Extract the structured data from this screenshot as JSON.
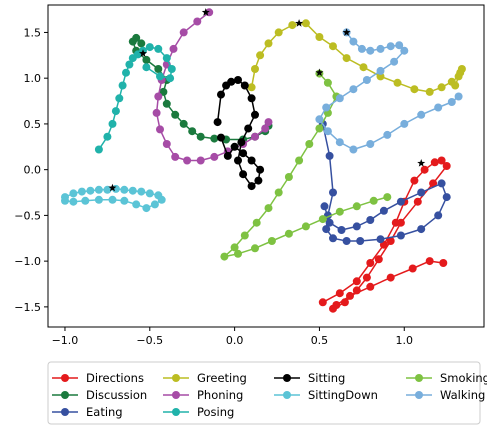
{
  "chart_data": {
    "type": "line",
    "marker": "circle",
    "grid": false,
    "xlim": [
      -1.1,
      1.47
    ],
    "ylim": [
      -1.72,
      1.8
    ],
    "xticks": [
      -1.0,
      -0.5,
      0.0,
      0.5,
      1.0
    ],
    "yticks": [
      -1.5,
      -1.0,
      -0.5,
      0.0,
      0.5,
      1.0,
      1.5
    ],
    "xtick_labels": [
      "−1.0",
      "−0.5",
      "0.0",
      "0.5",
      "1.0"
    ],
    "ytick_labels": [
      "−1.5",
      "−1.0",
      "−0.5",
      "0.0",
      "0.5",
      "1.0",
      "1.5"
    ],
    "legend_placement": "lower-center-below-axes",
    "legend_columns": 4,
    "series": [
      {
        "name": "Directions",
        "color": "#e41a1c",
        "x": [
          0.52,
          0.62,
          0.72,
          0.8,
          0.88,
          0.95,
          1.0,
          1.06,
          1.12,
          1.18,
          1.22,
          1.25,
          1.17,
          1.08,
          0.98,
          0.92,
          0.85,
          0.78,
          0.72,
          0.65,
          0.58,
          0.6,
          0.68,
          0.8,
          0.92,
          1.05,
          1.15,
          1.23
        ],
        "y": [
          -1.45,
          -1.35,
          -1.22,
          -1.02,
          -0.82,
          -0.58,
          -0.35,
          -0.12,
          0.0,
          0.08,
          0.1,
          0.04,
          -0.15,
          -0.35,
          -0.58,
          -0.78,
          -0.98,
          -1.18,
          -1.32,
          -1.45,
          -1.52,
          -1.48,
          -1.38,
          -1.28,
          -1.18,
          -1.08,
          -1.0,
          -1.02
        ],
        "star": [
          1.1,
          0.07
        ]
      },
      {
        "name": "Discussion",
        "color": "#1b7a3e",
        "x": [
          -0.55,
          -0.58,
          -0.6,
          -0.58,
          -0.52,
          -0.45,
          -0.4,
          -0.42,
          -0.4,
          -0.35,
          -0.3,
          -0.25,
          -0.2,
          -0.12,
          -0.05,
          0.05,
          0.12,
          0.18,
          0.2
        ],
        "y": [
          1.38,
          1.44,
          1.4,
          1.3,
          1.2,
          1.1,
          0.98,
          0.85,
          0.72,
          0.6,
          0.5,
          0.42,
          0.36,
          0.34,
          0.33,
          0.33,
          0.36,
          0.42,
          0.48
        ]
      },
      {
        "name": "Eating",
        "color": "#3650a0",
        "x": [
          0.52,
          0.56,
          0.58,
          0.55,
          0.54,
          0.58,
          0.66,
          0.74,
          0.86,
          0.98,
          1.1,
          1.2,
          1.25,
          1.22,
          1.1,
          0.98,
          0.88,
          0.8,
          0.72,
          0.63,
          0.56,
          0.53
        ],
        "y": [
          0.5,
          0.15,
          -0.25,
          -0.5,
          -0.65,
          -0.75,
          -0.78,
          -0.78,
          -0.76,
          -0.72,
          -0.65,
          -0.5,
          -0.3,
          -0.15,
          -0.25,
          -0.35,
          -0.45,
          -0.55,
          -0.62,
          -0.66,
          -0.58,
          -0.4
        ]
      },
      {
        "name": "Greeting",
        "color": "#bcbd22",
        "x": [
          0.1,
          0.12,
          0.15,
          0.2,
          0.26,
          0.34,
          0.42,
          0.5,
          0.58,
          0.66,
          0.76,
          0.86,
          0.96,
          1.06,
          1.15,
          1.22,
          1.28,
          1.32,
          1.34,
          1.33,
          1.3
        ],
        "y": [
          0.9,
          1.1,
          1.25,
          1.38,
          1.5,
          1.58,
          1.6,
          1.45,
          1.35,
          1.22,
          1.12,
          1.02,
          0.95,
          0.88,
          0.85,
          0.9,
          0.96,
          1.02,
          1.1,
          1.06,
          0.92
        ],
        "star": [
          0.38,
          1.6
        ]
      },
      {
        "name": "Phoning",
        "color": "#a64ca6",
        "x": [
          -0.15,
          -0.22,
          -0.3,
          -0.36,
          -0.4,
          -0.43,
          -0.45,
          -0.46,
          -0.44,
          -0.4,
          -0.35,
          -0.28,
          -0.2,
          -0.12,
          -0.04,
          0.05,
          0.12,
          0.18,
          0.2
        ],
        "y": [
          1.72,
          1.62,
          1.5,
          1.32,
          1.15,
          0.98,
          0.8,
          0.62,
          0.44,
          0.28,
          0.14,
          0.1,
          0.1,
          0.14,
          0.2,
          0.28,
          0.36,
          0.45,
          0.52
        ],
        "star": [
          -0.17,
          1.72
        ]
      },
      {
        "name": "Posing",
        "color": "#20b2aa",
        "x": [
          -0.8,
          -0.75,
          -0.72,
          -0.7,
          -0.68,
          -0.66,
          -0.64,
          -0.62,
          -0.6,
          -0.57,
          -0.54,
          -0.5,
          -0.45,
          -0.4,
          -0.37,
          -0.38,
          -0.44,
          -0.52
        ],
        "y": [
          0.22,
          0.36,
          0.5,
          0.64,
          0.78,
          0.92,
          1.06,
          1.15,
          1.22,
          1.26,
          1.3,
          1.34,
          1.32,
          1.22,
          1.1,
          1.0,
          1.02,
          1.12
        ],
        "star": [
          -0.54,
          1.27
        ]
      },
      {
        "name": "Sitting",
        "color": "#000000",
        "x": [
          -0.1,
          -0.08,
          -0.05,
          -0.02,
          0.02,
          0.06,
          0.1,
          0.12,
          0.08,
          0.04,
          0.02,
          0.05,
          0.1,
          0.14,
          0.15,
          0.1,
          0.05,
          0.0,
          -0.04,
          -0.08
        ],
        "y": [
          0.52,
          0.82,
          0.92,
          0.96,
          0.98,
          0.92,
          0.78,
          0.6,
          0.45,
          0.3,
          0.1,
          -0.05,
          -0.18,
          -0.12,
          0.0,
          0.1,
          0.18,
          0.25,
          0.15,
          0.35
        ]
      },
      {
        "name": "SittingDown",
        "color": "#5bc4d6",
        "x": [
          -1.0,
          -0.95,
          -0.9,
          -0.85,
          -0.8,
          -0.75,
          -0.7,
          -0.65,
          -0.6,
          -0.55,
          -0.5,
          -0.45,
          -0.43,
          -0.47,
          -0.52,
          -0.58,
          -0.65,
          -0.72,
          -0.8,
          -0.88,
          -0.95,
          -1.0
        ],
        "y": [
          -0.3,
          -0.26,
          -0.24,
          -0.23,
          -0.22,
          -0.22,
          -0.21,
          -0.22,
          -0.23,
          -0.24,
          -0.26,
          -0.28,
          -0.33,
          -0.38,
          -0.42,
          -0.38,
          -0.34,
          -0.33,
          -0.33,
          -0.34,
          -0.35,
          -0.34
        ],
        "star": [
          -0.72,
          -0.2
        ]
      },
      {
        "name": "Smoking",
        "color": "#7ec242",
        "x": [
          0.5,
          0.55,
          0.6,
          0.55,
          0.5,
          0.44,
          0.38,
          0.32,
          0.26,
          0.2,
          0.13,
          0.06,
          0.0,
          -0.06,
          0.02,
          0.12,
          0.22,
          0.32,
          0.42,
          0.52,
          0.62,
          0.72,
          0.82,
          0.9
        ],
        "y": [
          1.05,
          0.95,
          0.8,
          0.62,
          0.45,
          0.28,
          0.1,
          -0.08,
          -0.25,
          -0.42,
          -0.58,
          -0.72,
          -0.85,
          -0.95,
          -0.92,
          -0.86,
          -0.78,
          -0.7,
          -0.62,
          -0.54,
          -0.46,
          -0.4,
          -0.34,
          -0.3
        ],
        "star": [
          0.5,
          1.06
        ]
      },
      {
        "name": "Walking",
        "color": "#78aedc",
        "x": [
          0.66,
          0.7,
          0.75,
          0.8,
          0.86,
          0.92,
          0.97,
          1.0,
          0.94,
          0.86,
          0.78,
          0.7,
          0.62,
          0.54,
          0.5,
          0.55,
          0.62,
          0.7,
          0.8,
          0.9,
          1.0,
          1.1,
          1.2,
          1.28,
          1.32
        ],
        "y": [
          1.5,
          1.4,
          1.32,
          1.3,
          1.32,
          1.35,
          1.36,
          1.3,
          1.18,
          1.08,
          0.98,
          0.88,
          0.78,
          0.68,
          0.55,
          0.42,
          0.3,
          0.22,
          0.28,
          0.38,
          0.5,
          0.6,
          0.68,
          0.74,
          0.8
        ],
        "star": [
          0.66,
          1.5
        ]
      }
    ]
  }
}
